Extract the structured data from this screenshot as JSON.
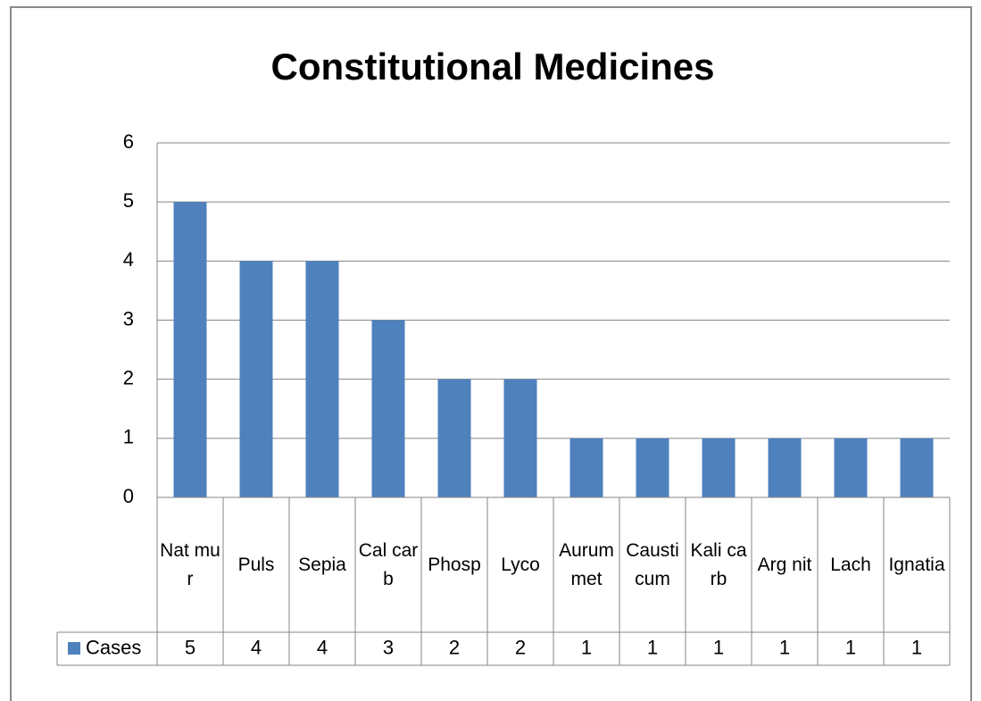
{
  "chart_data": {
    "type": "bar",
    "title": "Constitutional Medicines",
    "categories": [
      "Nat mur",
      "Puls",
      "Sepia",
      "Cal carb",
      "Phosp",
      "Lyco",
      "Aurum met",
      "Causticum",
      "Kali carb",
      "Arg nit",
      "Lach",
      "Ignatia"
    ],
    "series": [
      {
        "name": "Cases",
        "color": "#4f81bd",
        "values": [
          5,
          4,
          4,
          3,
          2,
          2,
          1,
          1,
          1,
          1,
          1,
          1
        ]
      }
    ],
    "ylim": [
      0,
      6
    ],
    "yticks": [
      0,
      1,
      2,
      3,
      4,
      5,
      6
    ],
    "grid": true,
    "data_table": true
  }
}
